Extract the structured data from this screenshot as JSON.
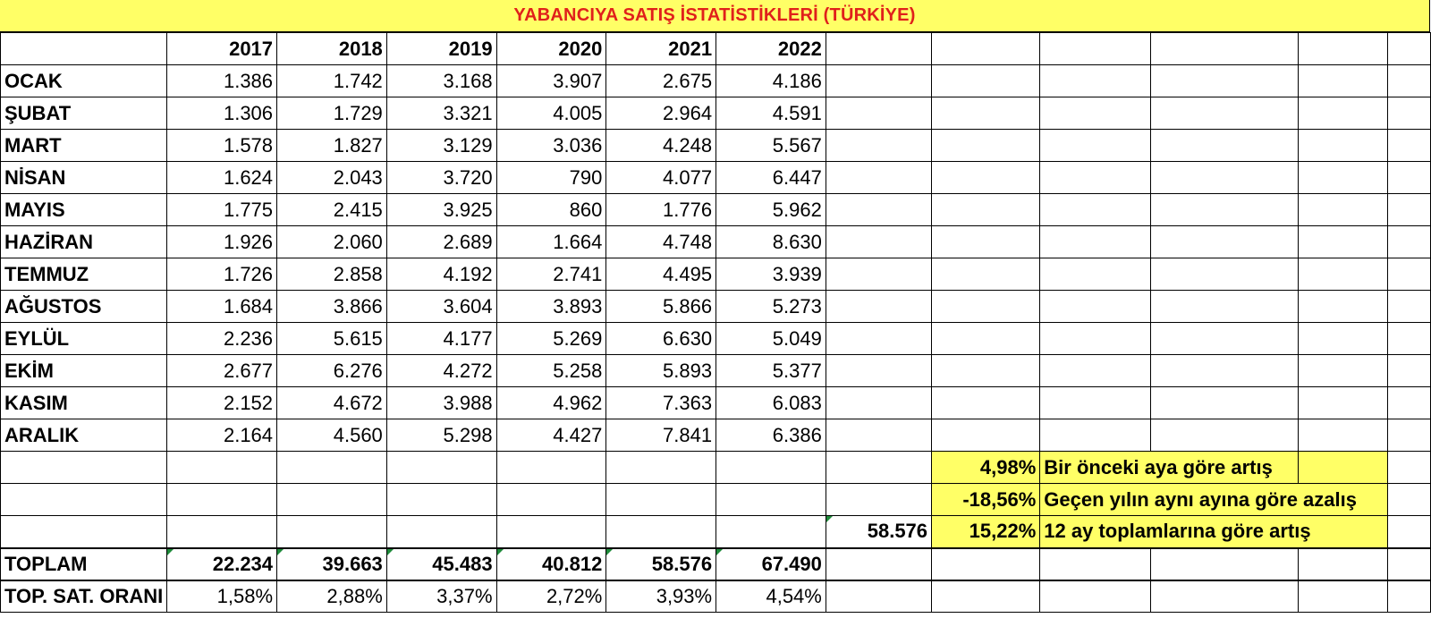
{
  "title": "YABANCIYA SATIŞ İSTATİSTİKLERİ (TÜRKİYE)",
  "years": [
    "2017",
    "2018",
    "2019",
    "2020",
    "2021",
    "2022"
  ],
  "months": [
    {
      "name": "OCAK",
      "values": [
        "1.386",
        "1.742",
        "3.168",
        "3.907",
        "2.675",
        "4.186"
      ]
    },
    {
      "name": "ŞUBAT",
      "values": [
        "1.306",
        "1.729",
        "3.321",
        "4.005",
        "2.964",
        "4.591"
      ]
    },
    {
      "name": "MART",
      "values": [
        "1.578",
        "1.827",
        "3.129",
        "3.036",
        "4.248",
        "5.567"
      ]
    },
    {
      "name": "NİSAN",
      "values": [
        "1.624",
        "2.043",
        "3.720",
        "790",
        "4.077",
        "6.447"
      ]
    },
    {
      "name": "MAYIS",
      "values": [
        "1.775",
        "2.415",
        "3.925",
        "860",
        "1.776",
        "5.962"
      ]
    },
    {
      "name": "HAZİRAN",
      "values": [
        "1.926",
        "2.060",
        "2.689",
        "1.664",
        "4.748",
        "8.630"
      ]
    },
    {
      "name": "TEMMUZ",
      "values": [
        "1.726",
        "2.858",
        "4.192",
        "2.741",
        "4.495",
        "3.939"
      ]
    },
    {
      "name": "AĞUSTOS",
      "values": [
        "1.684",
        "3.866",
        "3.604",
        "3.893",
        "5.866",
        "5.273"
      ]
    },
    {
      "name": "EYLÜL",
      "values": [
        "2.236",
        "5.615",
        "4.177",
        "5.269",
        "6.630",
        "5.049"
      ]
    },
    {
      "name": "EKİM",
      "values": [
        "2.677",
        "6.276",
        "4.272",
        "5.258",
        "5.893",
        "5.377"
      ]
    },
    {
      "name": "KASIM",
      "values": [
        "2.152",
        "4.672",
        "3.988",
        "4.962",
        "7.363",
        "6.083"
      ]
    },
    {
      "name": "ARALIK",
      "values": [
        "2.164",
        "4.560",
        "5.298",
        "4.427",
        "7.841",
        "6.386"
      ]
    }
  ],
  "stats": [
    {
      "percent": "4,98%",
      "label": "Bir önceki aya göre artış"
    },
    {
      "percent": "-18,56%",
      "label": "Geçen yılın aynı ayına göre azalış"
    },
    {
      "percent": "15,22%",
      "label": "12 ay toplamlarına göre artış",
      "extra": "58.576"
    }
  ],
  "total": {
    "label": "TOPLAM",
    "values": [
      "22.234",
      "39.663",
      "45.483",
      "40.812",
      "58.576",
      "67.490"
    ]
  },
  "ratio": {
    "label": "TOP. SAT. ORANI",
    "values": [
      "1,58%",
      "2,88%",
      "3,37%",
      "2,72%",
      "3,93%",
      "4,54%"
    ]
  },
  "colors": {
    "title_bg": "#ffff66",
    "title_text": "#e0201b",
    "highlight_bg": "#ffff66"
  }
}
